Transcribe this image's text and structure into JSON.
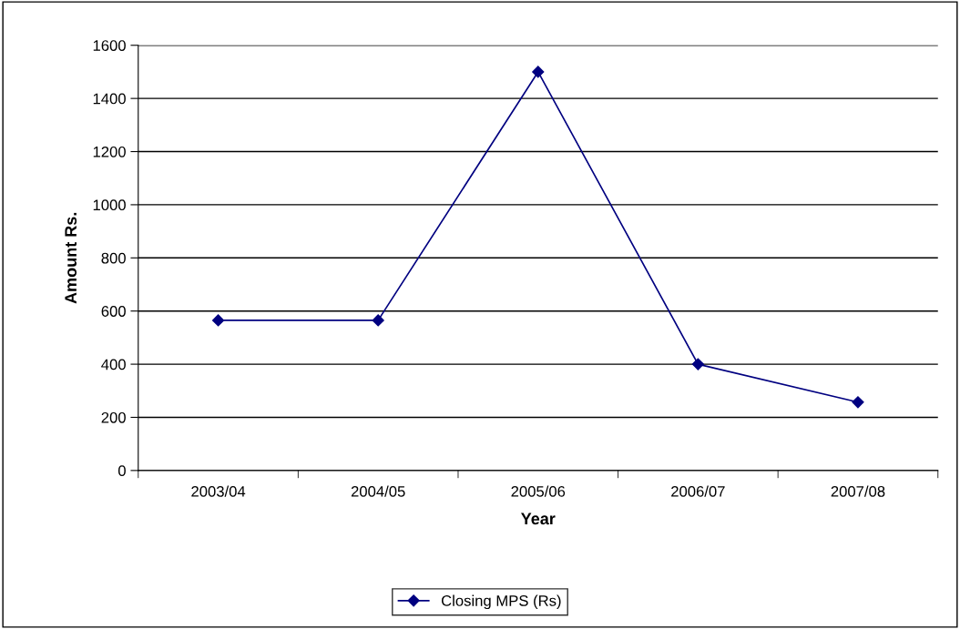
{
  "chart_data": {
    "type": "line",
    "xlabel": "Year",
    "ylabel": "Amount Rs.",
    "categories": [
      "2003/04",
      "2004/05",
      "2005/06",
      "2006/07",
      "2007/08"
    ],
    "series": [
      {
        "name": "Closing MPS (Rs)",
        "color": "#000080",
        "values": [
          565,
          565,
          1500,
          400,
          257
        ]
      }
    ],
    "ylim": [
      0,
      1600
    ],
    "yticks": [
      0,
      200,
      400,
      600,
      800,
      1000,
      1200,
      1400,
      1600
    ],
    "grid": "y",
    "legend": "bottom",
    "marker": "diamond",
    "line_style": "solid"
  }
}
